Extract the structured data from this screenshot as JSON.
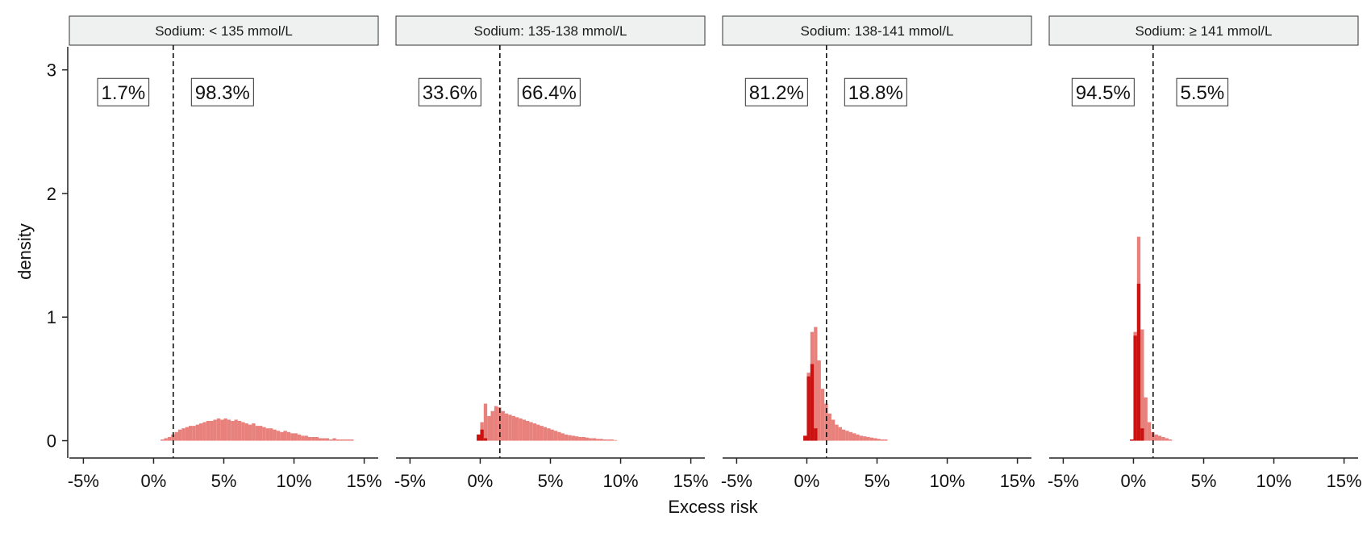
{
  "chart_data": {
    "type": "bar",
    "subtype": "faceted-histogram",
    "xlabel": "Excess risk",
    "ylabel": "density",
    "xlim": [
      -6,
      16
    ],
    "ylim": [
      -0.14,
      3.2
    ],
    "x_ticks": [
      -5,
      0,
      5,
      10,
      15
    ],
    "x_tick_labels": [
      "-5%",
      "0%",
      "5%",
      "10%",
      "15%"
    ],
    "y_ticks": [
      0,
      1,
      2,
      3
    ],
    "y_tick_labels": [
      "0",
      "1",
      "2",
      "3"
    ],
    "threshold": 1.4,
    "bin_width": 0.25,
    "colors": {
      "light": "#e8807c",
      "dark": "#cc1111"
    },
    "grid": false,
    "facets": [
      {
        "label": "Sodium: < 135 mmol/L",
        "left_pct": "1.7%",
        "right_pct": "98.3%",
        "light_bins": {
          "start": 0.5,
          "densities": [
            0.01,
            0.02,
            0.03,
            0.05,
            0.07,
            0.09,
            0.1,
            0.11,
            0.12,
            0.12,
            0.13,
            0.14,
            0.15,
            0.16,
            0.16,
            0.17,
            0.18,
            0.17,
            0.18,
            0.17,
            0.16,
            0.17,
            0.16,
            0.15,
            0.14,
            0.13,
            0.14,
            0.12,
            0.12,
            0.11,
            0.1,
            0.1,
            0.09,
            0.08,
            0.07,
            0.08,
            0.07,
            0.06,
            0.06,
            0.05,
            0.04,
            0.04,
            0.03,
            0.03,
            0.03,
            0.02,
            0.02,
            0.02,
            0.01,
            0.02,
            0.01,
            0.01,
            0.01,
            0.01,
            0.01
          ]
        },
        "dark_bins": {
          "start": 0.5,
          "densities": []
        }
      },
      {
        "label": "Sodium: 135-138 mmol/L",
        "left_pct": "33.6%",
        "right_pct": "66.4%",
        "light_bins": {
          "start": -0.25,
          "densities": [
            0.05,
            0.15,
            0.3,
            0.2,
            0.24,
            0.28,
            0.27,
            0.24,
            0.22,
            0.21,
            0.2,
            0.19,
            0.18,
            0.17,
            0.16,
            0.15,
            0.14,
            0.13,
            0.12,
            0.11,
            0.1,
            0.09,
            0.08,
            0.07,
            0.06,
            0.05,
            0.045,
            0.04,
            0.035,
            0.03,
            0.03,
            0.025,
            0.02,
            0.02,
            0.015,
            0.015,
            0.01,
            0.01,
            0.01,
            0.005
          ]
        },
        "dark_bins": {
          "start": -0.25,
          "densities": [
            0.05,
            0.09,
            0.02
          ]
        }
      },
      {
        "label": "Sodium: 138-141 mmol/L",
        "left_pct": "81.2%",
        "right_pct": "18.8%",
        "light_bins": {
          "start": -0.25,
          "densities": [
            0.04,
            0.55,
            0.88,
            0.92,
            0.65,
            0.42,
            0.3,
            0.22,
            0.17,
            0.13,
            0.11,
            0.09,
            0.08,
            0.07,
            0.06,
            0.05,
            0.04,
            0.035,
            0.03,
            0.025,
            0.02,
            0.015,
            0.01,
            0.01
          ]
        },
        "dark_bins": {
          "start": -0.25,
          "densities": [
            0.04,
            0.52,
            0.62,
            0.1
          ]
        }
      },
      {
        "label": "Sodium: ≥ 141 mmol/L",
        "left_pct": "94.5%",
        "right_pct": "5.5%",
        "light_bins": {
          "start": -0.25,
          "densities": [
            0.01,
            0.88,
            1.65,
            0.9,
            0.35,
            0.15,
            0.07,
            0.05,
            0.04,
            0.03,
            0.02,
            0.01
          ]
        },
        "dark_bins": {
          "start": -0.25,
          "densities": [
            0.01,
            0.85,
            1.27,
            0.1
          ]
        }
      }
    ]
  }
}
